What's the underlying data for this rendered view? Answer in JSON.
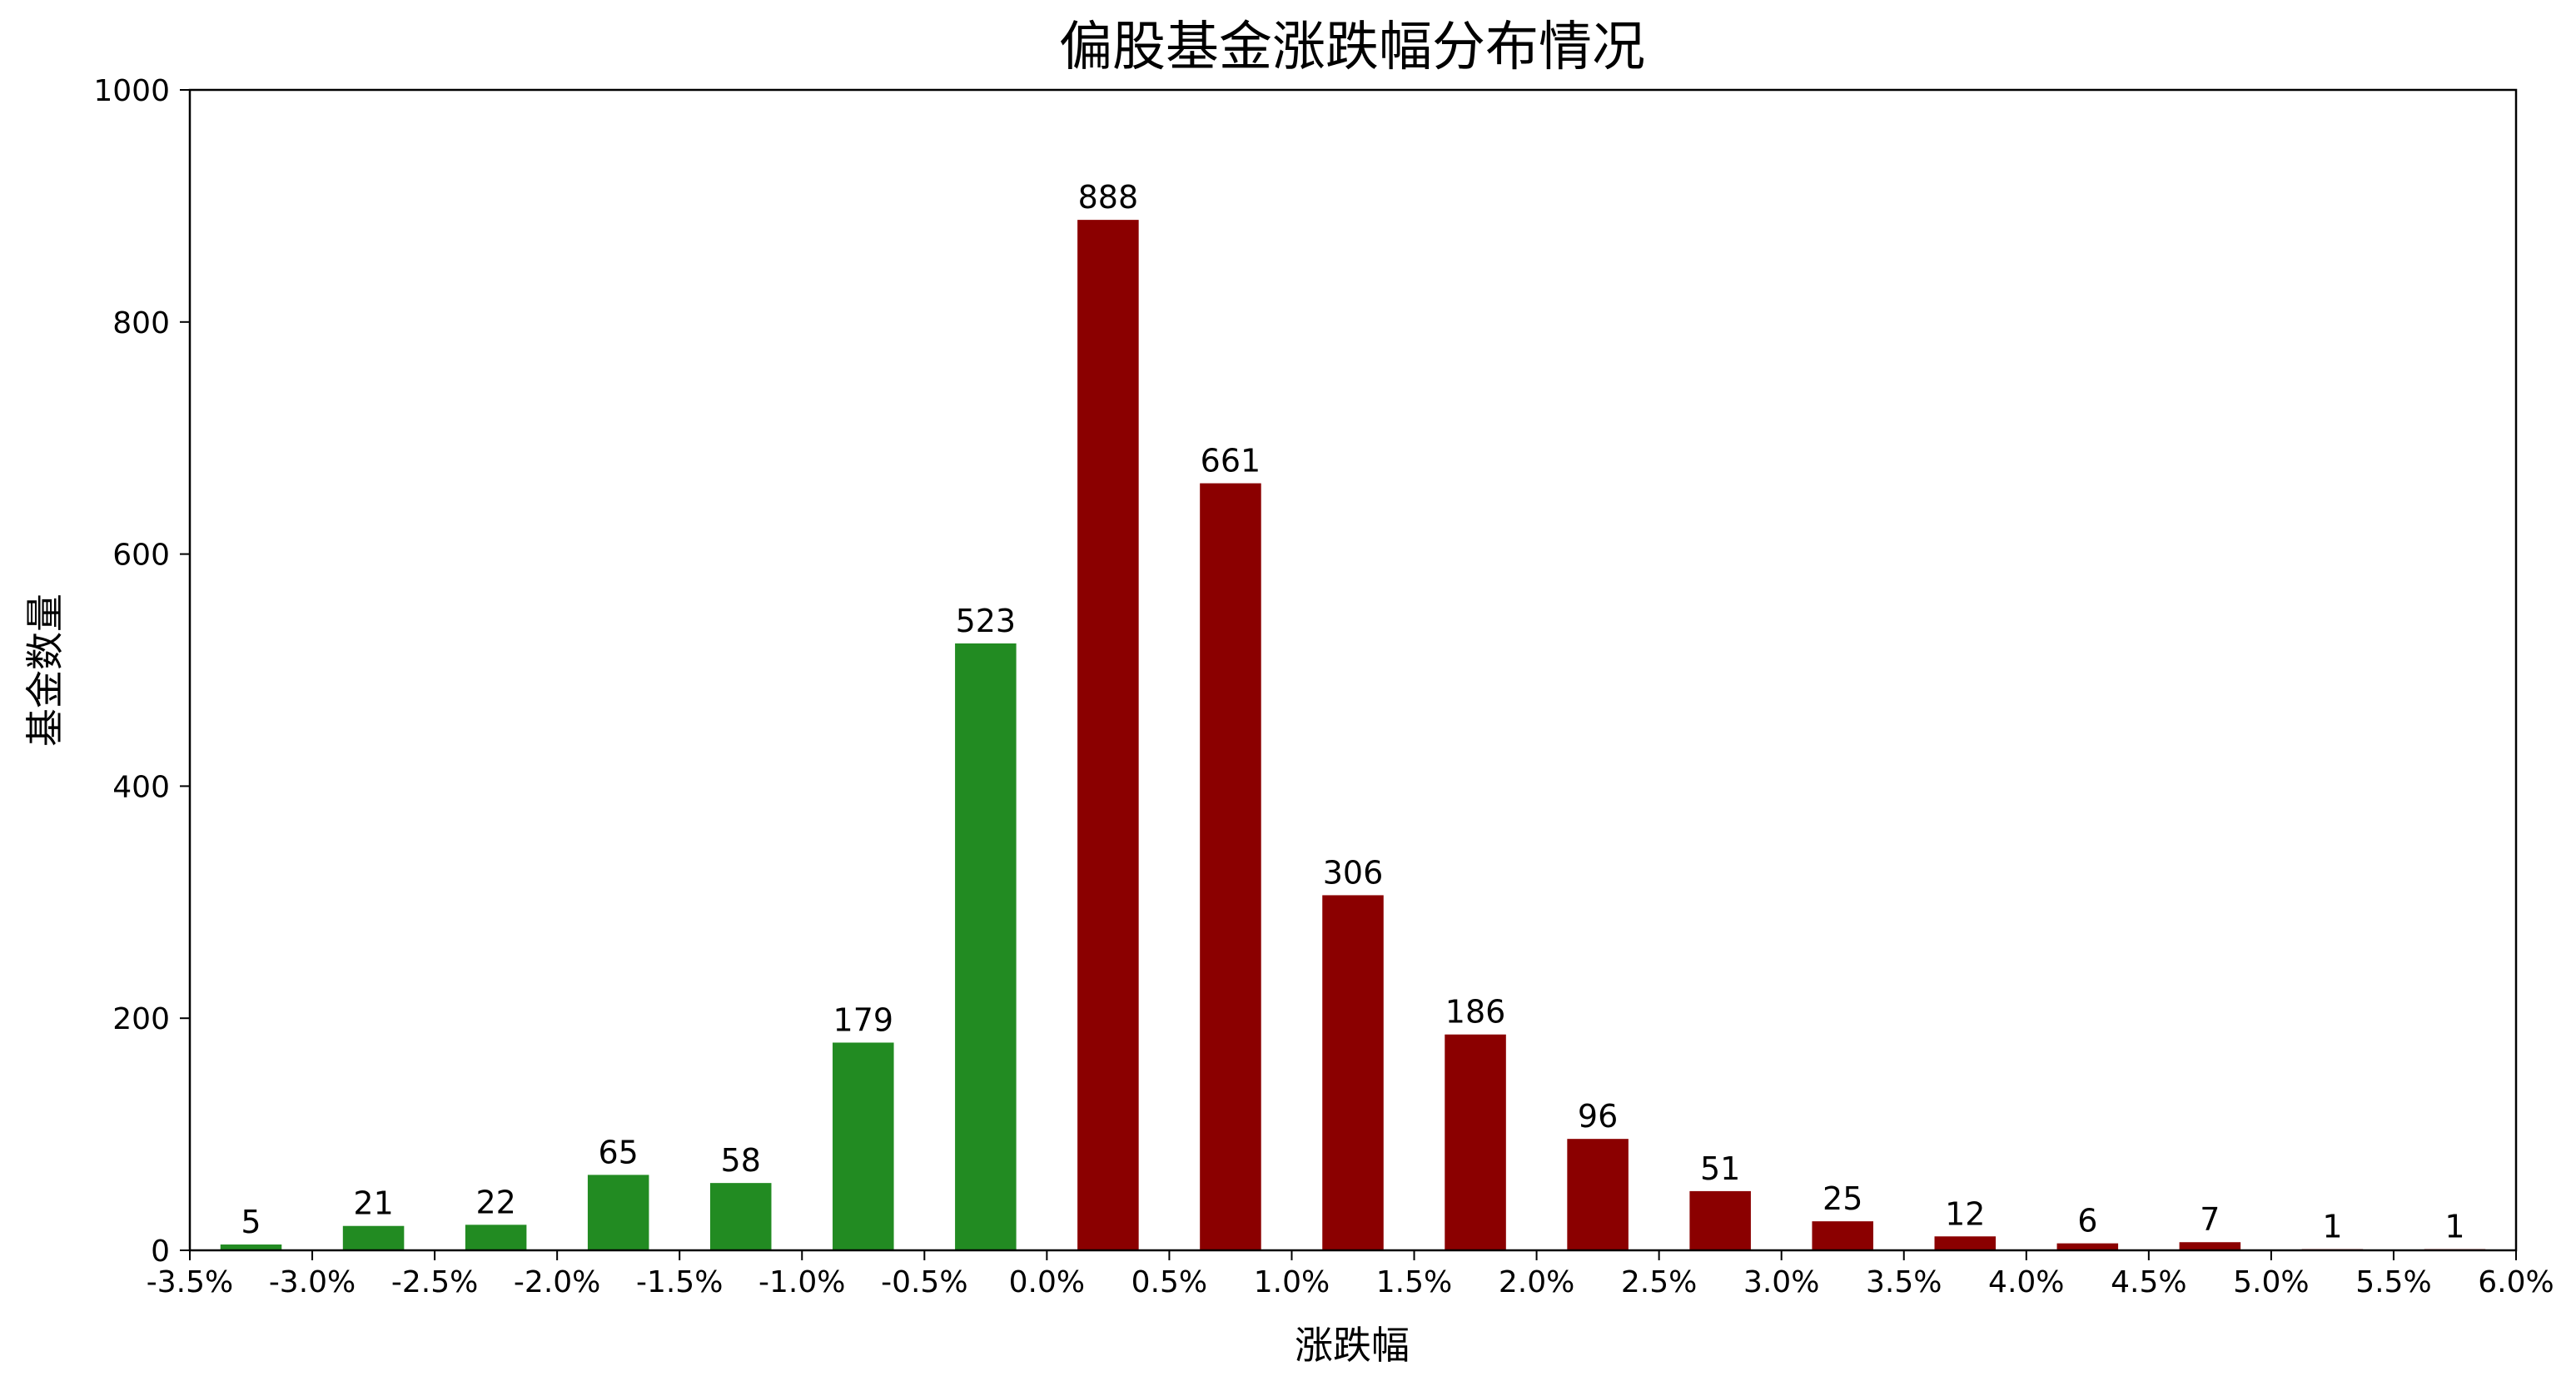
{
  "chart_data": {
    "type": "bar",
    "title": "偏股基金涨跌幅分布情况",
    "xlabel": "涨跌幅",
    "ylabel": "基金数量",
    "xlim": [
      -3.5,
      6.0
    ],
    "ylim": [
      0,
      1000
    ],
    "x_ticks": [
      "-3.5%",
      "-3.0%",
      "-2.5%",
      "-2.0%",
      "-1.5%",
      "-1.0%",
      "-0.5%",
      "0.0%",
      "0.5%",
      "1.0%",
      "1.5%",
      "2.0%",
      "2.5%",
      "3.0%",
      "3.5%",
      "4.0%",
      "4.5%",
      "5.0%",
      "5.5%",
      "6.0%"
    ],
    "y_ticks": [
      0,
      200,
      400,
      600,
      800,
      1000
    ],
    "bin_width": 0.5,
    "bins": [
      {
        "start": -3.5,
        "end": -3.0,
        "value": 5
      },
      {
        "start": -3.0,
        "end": -2.5,
        "value": 21
      },
      {
        "start": -2.5,
        "end": -2.0,
        "value": 22
      },
      {
        "start": -2.0,
        "end": -1.5,
        "value": 65
      },
      {
        "start": -1.5,
        "end": -1.0,
        "value": 58
      },
      {
        "start": -1.0,
        "end": -0.5,
        "value": 179
      },
      {
        "start": -0.5,
        "end": 0.0,
        "value": 523
      },
      {
        "start": 0.0,
        "end": 0.5,
        "value": 888
      },
      {
        "start": 0.5,
        "end": 1.0,
        "value": 661
      },
      {
        "start": 1.0,
        "end": 1.5,
        "value": 306
      },
      {
        "start": 1.5,
        "end": 2.0,
        "value": 186
      },
      {
        "start": 2.0,
        "end": 2.5,
        "value": 96
      },
      {
        "start": 2.5,
        "end": 3.0,
        "value": 51
      },
      {
        "start": 3.0,
        "end": 3.5,
        "value": 25
      },
      {
        "start": 3.5,
        "end": 4.0,
        "value": 12
      },
      {
        "start": 4.0,
        "end": 4.5,
        "value": 6
      },
      {
        "start": 4.5,
        "end": 5.0,
        "value": 7
      },
      {
        "start": 5.0,
        "end": 5.5,
        "value": 1
      },
      {
        "start": 5.5,
        "end": 6.0,
        "value": 1
      }
    ],
    "colors": {
      "negative": "#228B22",
      "positive": "#8B0000",
      "axis": "#000000"
    },
    "grid": false,
    "legend": "none"
  }
}
